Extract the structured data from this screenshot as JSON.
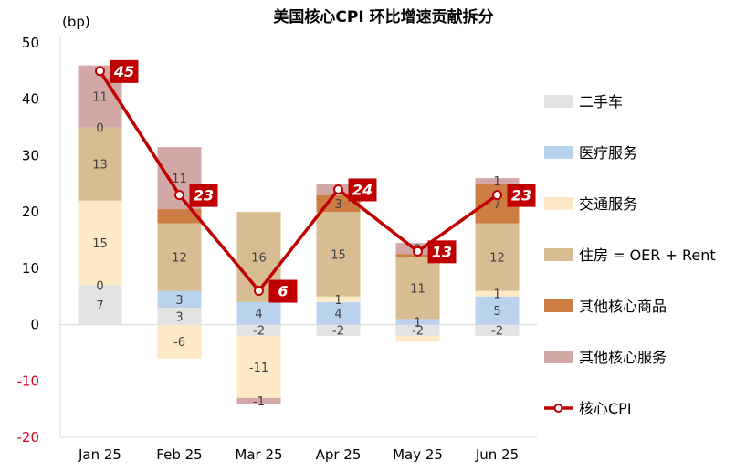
{
  "chart_data": {
    "type": "bar",
    "stacked": true,
    "title": "美国核心CPI 环比增速贡献拆分",
    "ylabel": "(bp)",
    "ylim": [
      -20,
      50
    ],
    "yticks": [
      "50",
      "40",
      "30",
      "20",
      "10",
      "0",
      "-10",
      "-20"
    ],
    "categories": [
      "Jan 25",
      "Feb 25",
      "Mar 25",
      "Apr 25",
      "May 25",
      "Jun 25"
    ],
    "series": [
      {
        "name": "二手车",
        "color": "#e3e3e3",
        "values": [
          7,
          3,
          -2,
          -2,
          -2,
          -2
        ],
        "labels": [
          "7",
          "3",
          "-2",
          "-2",
          "-2",
          "-2"
        ]
      },
      {
        "name": "医疗服务",
        "color": "#b9d3ec",
        "values": [
          0,
          3,
          4,
          4,
          1,
          5
        ],
        "labels": [
          "0",
          "3",
          "4",
          "4",
          "1",
          "5"
        ]
      },
      {
        "name": "交通服务",
        "color": "#fde9c6",
        "values": [
          15,
          -6,
          -11,
          1,
          -1,
          1
        ],
        "labels": [
          "15",
          "-6",
          "-11",
          "1",
          "",
          "1"
        ]
      },
      {
        "name": "住房 = OER + Rent",
        "color": "#d8bd92",
        "values": [
          13,
          12,
          16,
          15,
          11,
          12
        ],
        "labels": [
          "13",
          "12",
          "16",
          "15",
          "11",
          "12"
        ]
      },
      {
        "name": "其他核心商品",
        "color": "#cd7c43",
        "values": [
          0,
          2.5,
          0,
          3,
          0.5,
          7
        ],
        "labels": [
          "0",
          "",
          "",
          "3",
          "",
          "7"
        ]
      },
      {
        "name": "其他核心服务",
        "color": "#d4a7a7",
        "values": [
          11,
          11,
          -1,
          2,
          2,
          1
        ],
        "labels": [
          "11",
          "11",
          "-1",
          "2",
          "2",
          "1"
        ]
      }
    ],
    "line": {
      "name": "核心CPI",
      "color": "#c00000",
      "values": [
        45,
        23,
        6,
        24,
        13,
        23
      ],
      "labels": [
        "45",
        "23",
        "6",
        "24",
        "13",
        "23"
      ]
    },
    "legend_position": "right",
    "grid": false
  }
}
